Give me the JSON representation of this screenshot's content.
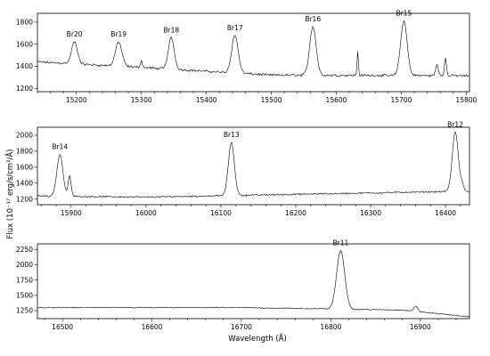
{
  "chart_data": {
    "type": "line",
    "xlabel": "Wavelength (Å)",
    "ylabel": "Flux (10⁻¹⁷ erg/s/cm²/Å)",
    "panels": [
      {
        "xlim": [
          15140,
          15805
        ],
        "ylim": [
          1170,
          1880
        ],
        "xticks": [
          15200,
          15300,
          15400,
          15500,
          15600,
          15700,
          15800
        ],
        "yticks": [
          1200,
          1400,
          1600,
          1800
        ],
        "continuum": [
          [
            15140,
            1440
          ],
          [
            15300,
            1390
          ],
          [
            15500,
            1320
          ],
          [
            15805,
            1315
          ]
        ],
        "lines": [
          {
            "name": "Br20",
            "x": 15197,
            "peak": 1620,
            "sigma": 4.5
          },
          {
            "name": "Br19",
            "x": 15265,
            "peak": 1620,
            "sigma": 5.0
          },
          {
            "name": "Br18",
            "x": 15346,
            "peak": 1660,
            "sigma": 4.5
          },
          {
            "name": "Br17",
            "x": 15444,
            "peak": 1680,
            "sigma": 5.0
          },
          {
            "name": "Br16",
            "x": 15564,
            "peak": 1760,
            "sigma": 5.0
          },
          {
            "name": "Br15",
            "x": 15704,
            "peak": 1810,
            "sigma": 5.0
          }
        ],
        "extra_features": [
          {
            "x": 15300,
            "amp": 60,
            "sigma": 1.5
          },
          {
            "x": 15633,
            "amp": 220,
            "sigma": 1.0
          },
          {
            "x": 15755,
            "amp": 100,
            "sigma": 2.0
          },
          {
            "x": 15768,
            "amp": 160,
            "sigma": 1.5
          }
        ],
        "noise": 14
      },
      {
        "xlim": [
          15855,
          16432
        ],
        "ylim": [
          1130,
          2100
        ],
        "xticks": [
          15900,
          16000,
          16100,
          16200,
          16300,
          16400
        ],
        "yticks": [
          1200,
          1400,
          1600,
          1800,
          2000
        ],
        "continuum": [
          [
            15855,
            1240
          ],
          [
            16000,
            1225
          ],
          [
            16200,
            1260
          ],
          [
            16432,
            1300
          ]
        ],
        "lines": [
          {
            "name": "Br14",
            "x": 15885,
            "peak": 1760,
            "sigma": 4.0
          },
          {
            "name": "Br13",
            "x": 16114,
            "peak": 1910,
            "sigma": 4.0
          },
          {
            "name": "Br12",
            "x": 16413,
            "peak": 2040,
            "sigma": 4.0
          }
        ],
        "extra_features": [
          {
            "x": 15898,
            "amp": 250,
            "sigma": 2.0
          },
          {
            "x": 16422,
            "amp": 80,
            "sigma": 2.0
          }
        ],
        "noise": 13
      },
      {
        "xlim": [
          16472,
          16955
        ],
        "ylim": [
          1120,
          2340
        ],
        "xticks": [
          16500,
          16600,
          16700,
          16800,
          16900
        ],
        "yticks": [
          1250,
          1500,
          1750,
          2000,
          2250
        ],
        "continuum": [
          [
            16472,
            1300
          ],
          [
            16700,
            1300
          ],
          [
            16880,
            1260
          ],
          [
            16955,
            1150
          ]
        ],
        "lines": [
          {
            "name": "Br11",
            "x": 16811,
            "peak": 2230,
            "sigma": 4.5
          }
        ],
        "extra_features": [
          {
            "x": 16895,
            "amp": 90,
            "sigma": 2.0
          }
        ],
        "noise": 11
      }
    ]
  }
}
